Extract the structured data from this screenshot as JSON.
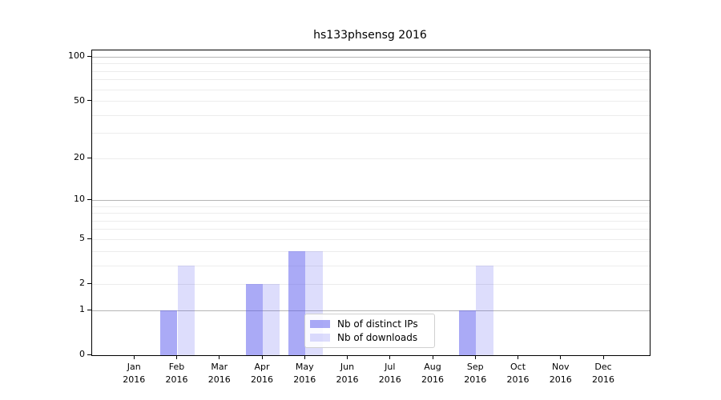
{
  "title": "hs133phsensg 2016",
  "chart_data": {
    "type": "bar",
    "title": "hs133phsensg 2016",
    "categories": [
      "Jan",
      "Feb",
      "Mar",
      "Apr",
      "May",
      "Jun",
      "Jul",
      "Aug",
      "Sep",
      "Oct",
      "Nov",
      "Dec"
    ],
    "x_year": "2016",
    "series": [
      {
        "name": "Nb of distinct IPs",
        "color": "rgba(85,85,238,0.5)",
        "values": [
          0,
          1,
          0,
          2,
          4,
          0,
          0,
          0,
          1,
          0,
          0,
          0
        ]
      },
      {
        "name": "Nb of downloads",
        "color": "rgba(85,85,238,0.2)",
        "values": [
          0,
          3,
          0,
          2,
          4,
          0,
          0,
          0,
          3,
          0,
          0,
          0
        ]
      }
    ],
    "y_scale": "log1p",
    "ylim": [
      0,
      110
    ],
    "y_ticks_labeled": [
      0,
      1,
      2,
      5,
      10,
      20,
      50,
      100
    ],
    "y_grid_major": [
      1,
      10,
      100
    ],
    "y_grid_minor": [
      2,
      3,
      4,
      5,
      6,
      7,
      8,
      9,
      20,
      30,
      40,
      50,
      60,
      70,
      80,
      90
    ],
    "grid": "horizontal",
    "legend_position": "lower center"
  },
  "colors": {
    "bar_distinct_ips": "rgba(85,85,238,0.5)",
    "bar_downloads": "rgba(85,85,238,0.2)",
    "grid_major": "#b5b5b5",
    "grid_minor": "#ececec",
    "spine": "#000000"
  }
}
